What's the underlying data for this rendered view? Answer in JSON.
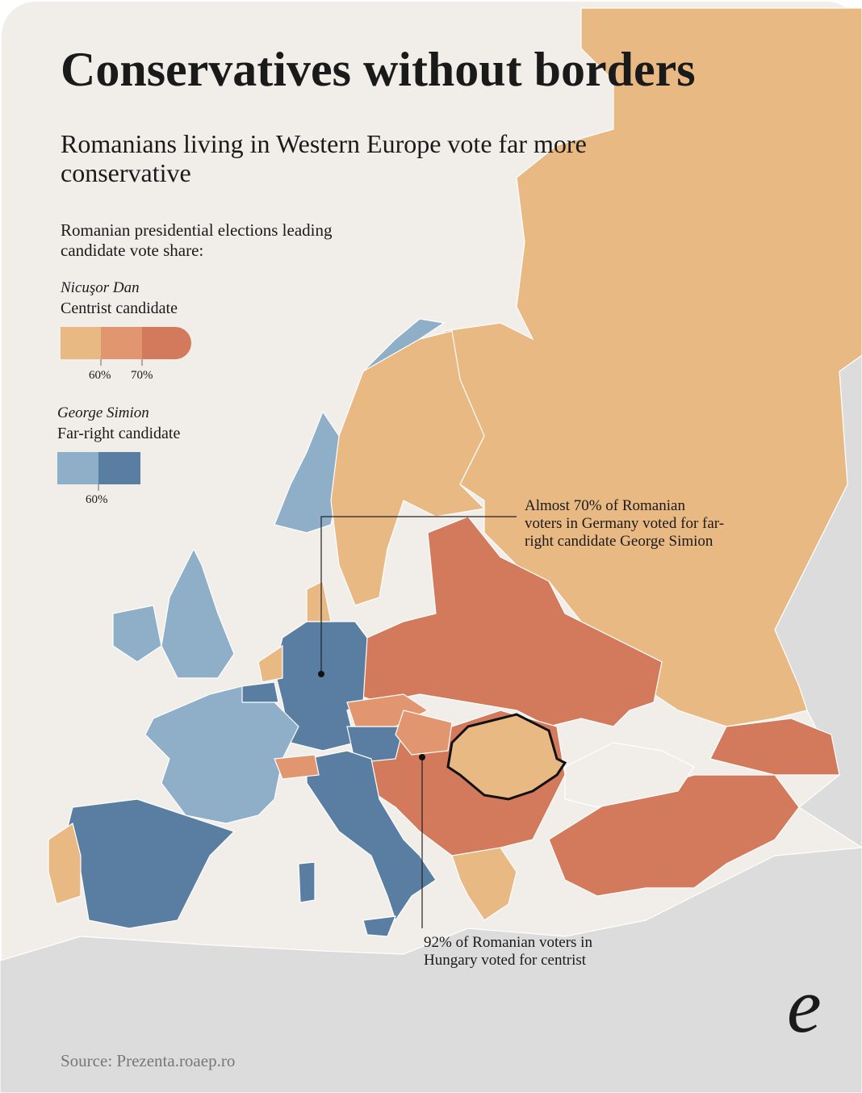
{
  "title": "Conservatives without borders",
  "subtitle": "Romanians living in Western Europe vote far more conservative",
  "legend": {
    "heading": "Romanian presidential elections leading candidate vote share:",
    "groups": [
      {
        "name": "Nicuşor Dan",
        "description": "Centrist candidate",
        "ticks": [
          "60%",
          "70%"
        ]
      },
      {
        "name": "George Simion",
        "description": "Far-right candidate",
        "ticks": [
          "60%"
        ]
      }
    ]
  },
  "annotations": [
    "Almost 70% of Romanian voters in Germany voted for far-right candidate George Simion",
    "92% of Romanian voters in Hungary voted for centrist"
  ],
  "source": "Source: Prezenta.roaep.ro",
  "logo": "e"
}
